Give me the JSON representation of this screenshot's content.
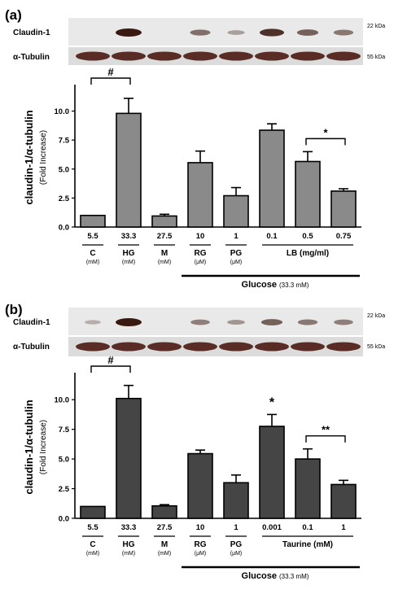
{
  "panel_labels": [
    "(a)",
    "(b)"
  ],
  "blot": {
    "claudin_label": "Claudin-1",
    "tubulin_label": "α-Tubulin",
    "kda_claudin": "22 kDa",
    "kda_tubulin": "55 kDa"
  },
  "axis": {
    "ylabel_main": "claudin-1/α-tubulin",
    "ylabel_sub": "(Fold Increase)"
  },
  "colors": {
    "panel_a_bar": "#8a8a8a",
    "panel_b_bar": "#454545"
  },
  "chart_data": [
    {
      "type": "bar",
      "panel": "(a)",
      "categories": [
        "5.5",
        "33.3",
        "27.5",
        "10",
        "1",
        "0.1",
        "0.5",
        "0.75"
      ],
      "values": [
        1.0,
        9.8,
        0.95,
        5.55,
        2.7,
        8.35,
        5.65,
        3.1
      ],
      "errors": [
        0.0,
        1.3,
        0.15,
        1.0,
        0.7,
        0.55,
        0.85,
        0.2
      ],
      "ylim": [
        0,
        12
      ],
      "yticks": [
        "0.0",
        "2.5",
        "5.0",
        "7.5",
        "10.0"
      ],
      "ytick_values": [
        0,
        2.5,
        5,
        7.5,
        10
      ],
      "group_labels": [
        {
          "name": "C",
          "unit": "(mM)"
        },
        {
          "name": "HG",
          "unit": "(mM)"
        },
        {
          "name": "M",
          "unit": "(mM)"
        },
        {
          "name": "RG",
          "unit": "(μM)"
        },
        {
          "name": "PG",
          "unit": "(μM)"
        }
      ],
      "treatment_label": "LB (mg/ml)",
      "glucose_label": "Glucose",
      "glucose_conc": "(33.3 mM)",
      "annotations": [
        {
          "text": "#",
          "from": 0,
          "to": 1
        },
        {
          "text": "*",
          "from": 6,
          "to": 7
        }
      ]
    },
    {
      "type": "bar",
      "panel": "(b)",
      "categories": [
        "5.5",
        "33.3",
        "27.5",
        "10",
        "1",
        "0.001",
        "0.1",
        "1"
      ],
      "values": [
        1.0,
        10.1,
        1.05,
        5.45,
        3.0,
        7.75,
        5.0,
        2.85
      ],
      "errors": [
        0.0,
        1.1,
        0.1,
        0.3,
        0.65,
        1.0,
        0.85,
        0.35
      ],
      "ylim": [
        0,
        12
      ],
      "yticks": [
        "0.0",
        "2.5",
        "5.0",
        "7.5",
        "10.0"
      ],
      "ytick_values": [
        0,
        2.5,
        5,
        7.5,
        10
      ],
      "group_labels": [
        {
          "name": "C",
          "unit": "(mM)"
        },
        {
          "name": "HG",
          "unit": "(mM)"
        },
        {
          "name": "M",
          "unit": "(mM)"
        },
        {
          "name": "RG",
          "unit": "(μM)"
        },
        {
          "name": "PG",
          "unit": "(μM)"
        }
      ],
      "treatment_label": "Taurine (mM)",
      "glucose_label": "Glucose",
      "glucose_conc": "(33.3 mM)",
      "annotations": [
        {
          "text": "#",
          "from": 0,
          "to": 1
        },
        {
          "text": "*",
          "above": 5
        },
        {
          "text": "**",
          "from": 6,
          "to": 7
        }
      ],
      "blot_claudin_band": [
        0.05,
        1.0,
        0.0,
        0.35,
        0.2,
        0.55,
        0.4,
        0.35
      ]
    }
  ],
  "blot_bands_a": [
    0.0,
    1.0,
    0.0,
    0.45,
    0.15,
    0.85,
    0.55,
    0.4
  ]
}
